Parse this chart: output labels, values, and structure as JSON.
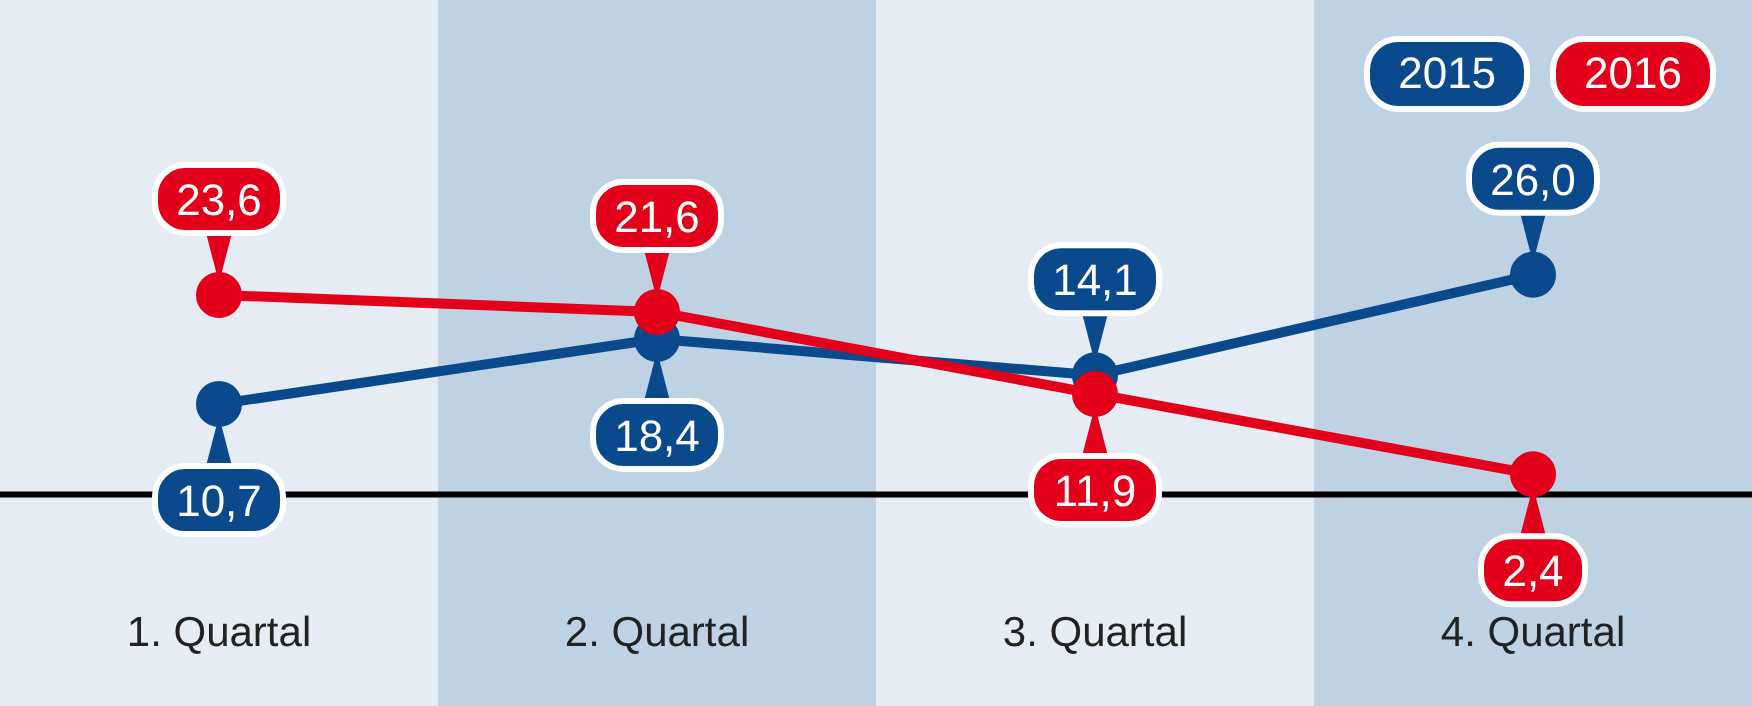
{
  "chart_data": {
    "type": "line",
    "categories": [
      "1. Quartal",
      "2. Quartal",
      "3. Quartal",
      "4. Quartal"
    ],
    "series": [
      {
        "name": "2015",
        "color": "#0a4a8c",
        "values": [
          10.7,
          18.4,
          14.1,
          26.0
        ],
        "value_labels": [
          "10,7",
          "18,4",
          "14,1",
          "26,0"
        ]
      },
      {
        "name": "2016",
        "color": "#e2001a",
        "values": [
          23.6,
          21.6,
          11.9,
          2.4
        ],
        "value_labels": [
          "23,6",
          "21,6",
          "11,9",
          "2,4"
        ]
      }
    ],
    "tick_labels": "x",
    "ref_lines": [
      {
        "axis": "y",
        "value": 0,
        "color": "#000000"
      }
    ],
    "marker": "circle",
    "line_style": "solid",
    "legend": "top right"
  }
}
